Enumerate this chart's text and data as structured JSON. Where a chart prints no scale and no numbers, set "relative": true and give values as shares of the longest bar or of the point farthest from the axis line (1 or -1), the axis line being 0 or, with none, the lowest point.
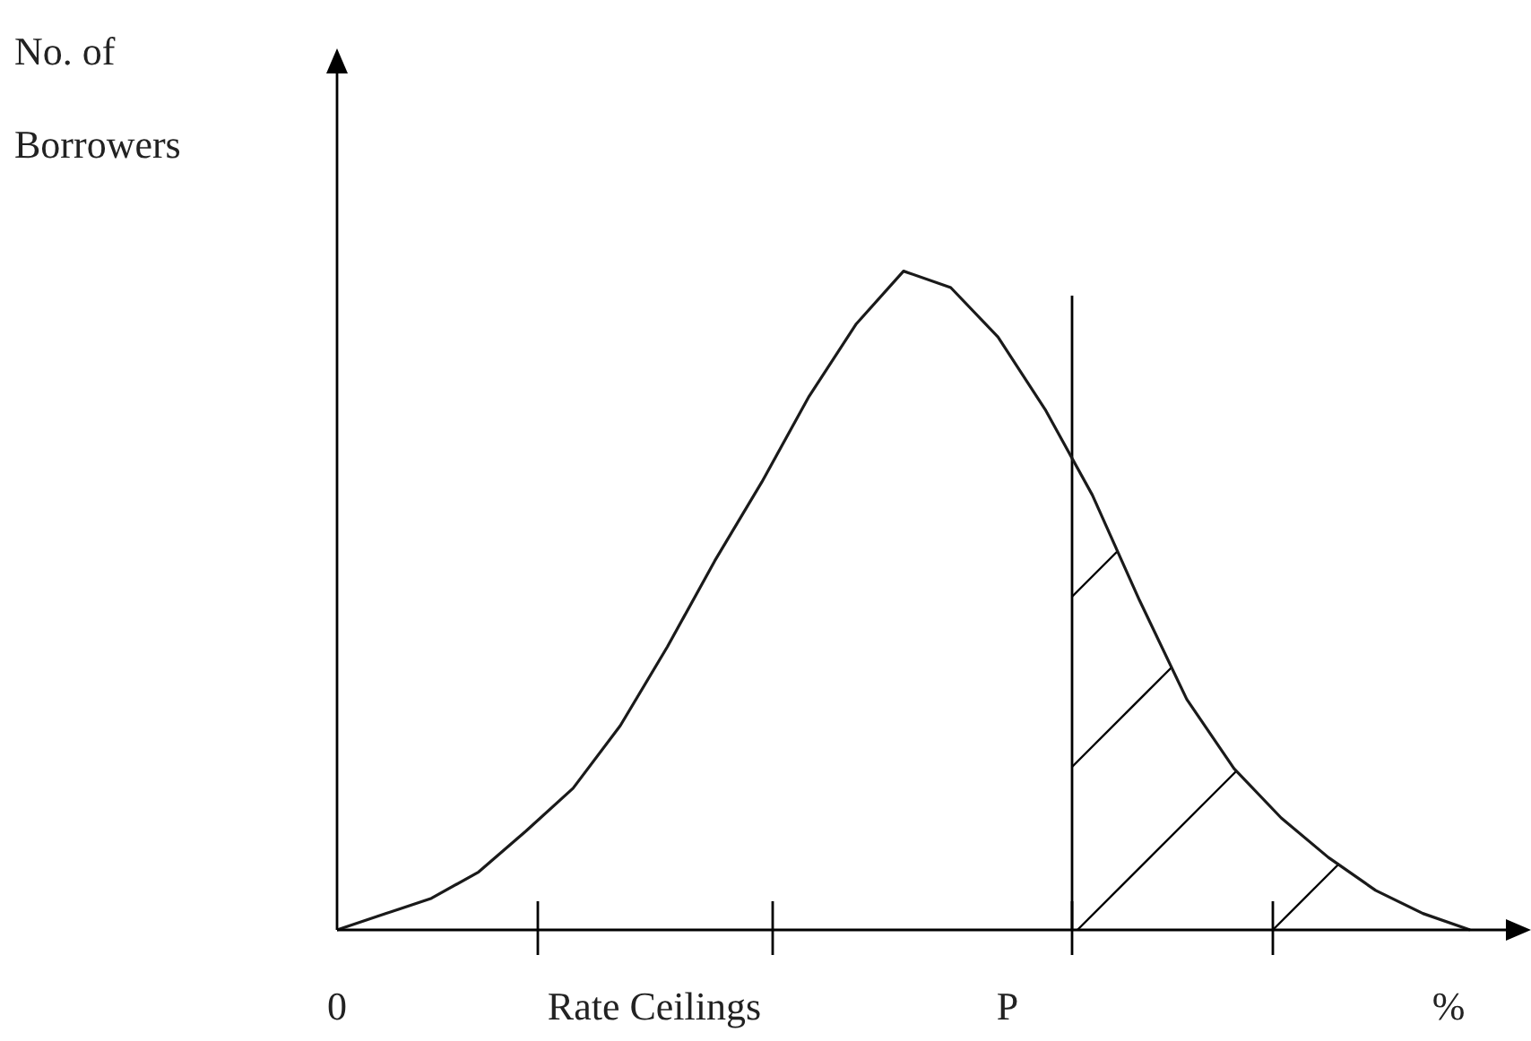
{
  "chart_data": {
    "type": "line",
    "relative": true,
    "ylabel": "No. of Borrowers",
    "categories": [
      null,
      null,
      null,
      null,
      null,
      null,
      null,
      null,
      null,
      null,
      null,
      null,
      null,
      null,
      null,
      null,
      null,
      null,
      null,
      null,
      null,
      null,
      null,
      null,
      null
    ],
    "series": [
      {
        "color": "#1a1a1a",
        "values": [
          0,
          0.024,
          0.048,
          0.088,
          0.15,
          0.215,
          0.31,
          0.43,
          0.56,
          0.68,
          0.81,
          0.92,
          1,
          0.975,
          0.9,
          0.79,
          0.66,
          0.5,
          0.35,
          0.245,
          0.17,
          0.11,
          0.06,
          0.025,
          0
        ]
      }
    ],
    "annotations": [
      "0",
      "Rate Ceilings",
      "P",
      "%"
    ],
    "marker": "none",
    "line_style": "solid"
  }
}
